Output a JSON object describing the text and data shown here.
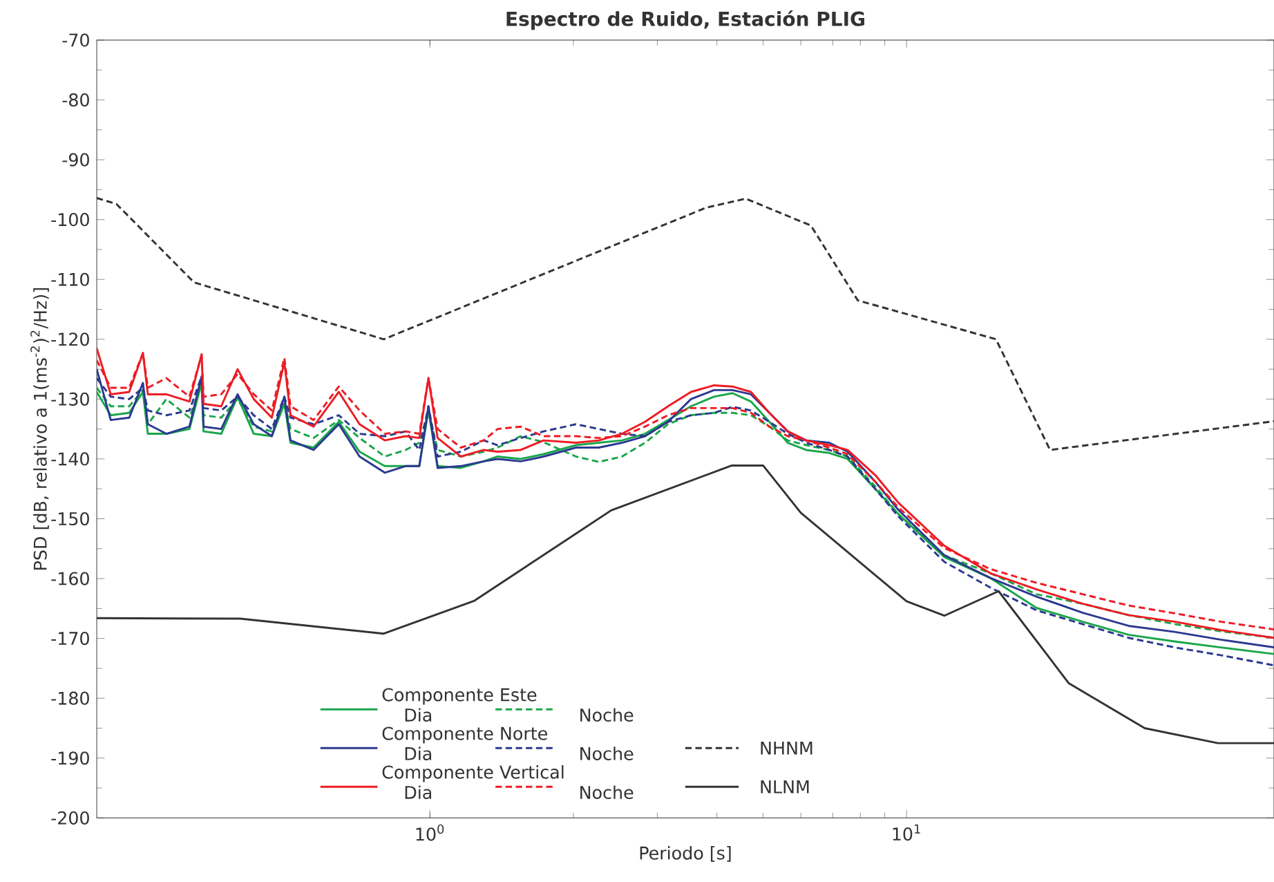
{
  "chart_data": {
    "type": "line",
    "title": "Espectro de Ruido, Estación PLIG",
    "xlabel": "Periodo [s]",
    "ylabel": "PSD [dB, relativo a 1(ms$^{-2}$)$^{2}$/Hz)]",
    "log": "x",
    "xlim": [
      0.2,
      59
    ],
    "xticks": [
      {
        "value": 1,
        "label": "10$^{0}$"
      },
      {
        "value": 10,
        "label": "10$^{1}$"
      }
    ],
    "ylim": [
      -200,
      -70
    ],
    "yticks": [
      -200,
      -190,
      -180,
      -170,
      -160,
      -150,
      -140,
      -130,
      -120,
      -110,
      -100,
      -90,
      -80,
      -70
    ],
    "legend": "bottom left",
    "annotations": [
      "Componente Este",
      "Componente Norte",
      "Componente Vertical"
    ],
    "x": [
      0.2,
      0.214,
      0.234,
      0.25,
      0.256,
      0.28,
      0.313,
      0.332,
      0.335,
      0.365,
      0.395,
      0.427,
      0.466,
      0.495,
      0.51,
      0.57,
      0.644,
      0.712,
      0.804,
      0.889,
      0.95,
      0.993,
      1.038,
      1.161,
      1.297,
      1.387,
      1.55,
      1.732,
      2.025,
      2.262,
      2.529,
      2.827,
      3.159,
      3.53,
      3.946,
      4.313,
      4.715,
      5.154,
      5.633,
      6.157,
      6.881,
      7.52,
      8.595,
      9.607,
      12,
      14.99,
      18.73,
      23.39,
      29.23,
      36.5,
      45.6,
      59
    ],
    "series": [
      {
        "name": "Dia",
        "color": "#1aa64a",
        "line_style": "solid",
        "values": [
          -128.8,
          -132.7,
          -132.3,
          -128.8,
          -135.8,
          -135.8,
          -135.0,
          -127.3,
          -135.4,
          -135.8,
          -129.6,
          -135.8,
          -136.2,
          -130.8,
          -137.3,
          -138.1,
          -133.8,
          -138.8,
          -141.2,
          -141.2,
          -141.2,
          -131.9,
          -141.2,
          -141.5,
          -140.4,
          -139.6,
          -140.0,
          -139.2,
          -137.7,
          -137.3,
          -136.9,
          -135.8,
          -133.5,
          -131.2,
          -129.6,
          -129.0,
          -130.4,
          -133.8,
          -137.3,
          -138.5,
          -139.0,
          -140.0,
          -145.0,
          -149.2,
          -156.4,
          -159.9,
          -164.9,
          -167.2,
          -169.4,
          -170.5,
          -171.5,
          -172.6
        ]
      },
      {
        "name": "Noche",
        "color": "#1aa64a",
        "line_style": "dashed",
        "values": [
          -128.1,
          -131.2,
          -131.2,
          -128.5,
          -134.2,
          -130.0,
          -133.1,
          -127.3,
          -132.7,
          -133.1,
          -130.0,
          -134.6,
          -135.4,
          -130.4,
          -135.0,
          -136.5,
          -133.5,
          -136.5,
          -139.6,
          -138.5,
          -137.3,
          -131.9,
          -138.5,
          -139.6,
          -138.8,
          -138.1,
          -136.2,
          -137.2,
          -139.6,
          -140.5,
          -139.6,
          -137.3,
          -134.2,
          -132.7,
          -132.3,
          -132.3,
          -132.7,
          -134.6,
          -136.9,
          -137.7,
          -138.5,
          -139.6,
          -144.6,
          -149.2,
          -156.1,
          -159.1,
          -162.6,
          -164.2,
          -166.1,
          -167.6,
          -168.8,
          -169.9
        ]
      },
      {
        "name": "Dia",
        "color": "#2b3990",
        "line_style": "solid",
        "values": [
          -125.0,
          -133.5,
          -133.1,
          -127.3,
          -134.2,
          -135.8,
          -134.6,
          -126.2,
          -134.6,
          -135.0,
          -129.2,
          -134.2,
          -136.2,
          -129.6,
          -136.9,
          -138.5,
          -134.2,
          -139.6,
          -142.3,
          -141.2,
          -141.2,
          -131.2,
          -141.5,
          -141.2,
          -140.4,
          -140.0,
          -140.4,
          -139.6,
          -138.1,
          -138.1,
          -137.3,
          -136.2,
          -133.8,
          -130.0,
          -128.5,
          -128.5,
          -129.2,
          -132.3,
          -135.4,
          -136.9,
          -137.3,
          -138.8,
          -143.8,
          -148.5,
          -156.1,
          -159.9,
          -163.0,
          -165.7,
          -167.9,
          -168.9,
          -170.2,
          -171.5
        ]
      },
      {
        "name": "Noche",
        "color": "#2b3990",
        "line_style": "dashed",
        "values": [
          -126.5,
          -129.6,
          -130.0,
          -128.1,
          -131.9,
          -132.7,
          -131.9,
          -126.2,
          -131.5,
          -131.9,
          -129.6,
          -132.7,
          -135.0,
          -129.6,
          -133.1,
          -134.2,
          -132.7,
          -135.8,
          -136.2,
          -135.4,
          -138.5,
          -131.2,
          -139.6,
          -138.8,
          -136.9,
          -137.7,
          -136.5,
          -135.4,
          -134.2,
          -135.0,
          -135.8,
          -136.2,
          -133.8,
          -132.7,
          -132.3,
          -131.3,
          -131.9,
          -133.8,
          -135.8,
          -137.3,
          -138.5,
          -139.6,
          -145.0,
          -149.6,
          -157.2,
          -161.5,
          -165.3,
          -167.6,
          -169.9,
          -171.5,
          -172.8,
          -174.5
        ]
      },
      {
        "name": "Dia",
        "color": "#ed1c24",
        "line_style": "solid",
        "values": [
          -121.5,
          -129.2,
          -128.8,
          -122.3,
          -129.2,
          -129.2,
          -130.4,
          -122.5,
          -130.8,
          -131.2,
          -125.0,
          -130.0,
          -133.1,
          -123.8,
          -132.7,
          -134.6,
          -128.8,
          -134.2,
          -136.9,
          -136.2,
          -136.5,
          -126.5,
          -136.5,
          -139.6,
          -138.5,
          -138.8,
          -138.5,
          -136.9,
          -137.3,
          -136.9,
          -135.8,
          -133.8,
          -131.2,
          -128.8,
          -127.7,
          -127.9,
          -128.8,
          -132.3,
          -135.4,
          -136.9,
          -137.7,
          -138.5,
          -142.7,
          -147.3,
          -154.5,
          -159.1,
          -161.8,
          -164.2,
          -166.1,
          -167.2,
          -168.6,
          -169.9
        ]
      },
      {
        "name": "Noche",
        "color": "#ed1c24",
        "line_style": "dashed",
        "values": [
          -123.5,
          -128.1,
          -128.1,
          -122.3,
          -128.1,
          -126.5,
          -129.6,
          -122.7,
          -129.6,
          -129.2,
          -125.8,
          -129.2,
          -131.9,
          -123.1,
          -131.2,
          -133.5,
          -127.9,
          -131.9,
          -135.8,
          -135.4,
          -135.8,
          -126.5,
          -135.0,
          -138.1,
          -136.9,
          -135.0,
          -134.6,
          -136.2,
          -136.2,
          -136.5,
          -136.2,
          -134.6,
          -132.7,
          -131.5,
          -131.5,
          -131.5,
          -132.3,
          -134.6,
          -136.2,
          -136.9,
          -138.1,
          -139.2,
          -143.8,
          -148.1,
          -154.9,
          -158.4,
          -160.7,
          -162.6,
          -164.5,
          -165.8,
          -167.2,
          -168.5
        ]
      },
      {
        "name": "NHNM",
        "color": "#333333",
        "line_style": "dashed",
        "x": [
          0.2,
          0.22,
          0.32,
          0.8,
          3.8,
          4.6,
          6.3,
          7.9,
          15.4,
          20,
          59
        ],
        "values": [
          -96.4,
          -97.4,
          -110.5,
          -120,
          -98,
          -96.5,
          -101,
          -113.5,
          -120,
          -138.5,
          -133.7
        ]
      },
      {
        "name": "NLNM",
        "color": "#333333",
        "line_style": "solid",
        "x": [
          0.2,
          0.4,
          0.8,
          1.24,
          2.4,
          4.3,
          5,
          6,
          10,
          12,
          15.6,
          21.9,
          31.6,
          45,
          59
        ],
        "values": [
          -166.6,
          -166.7,
          -169.2,
          -163.7,
          -148.6,
          -141.1,
          -141.1,
          -149,
          -163.8,
          -166.2,
          -162.1,
          -177.5,
          -185,
          -187.5,
          -187.5
        ]
      }
    ]
  }
}
